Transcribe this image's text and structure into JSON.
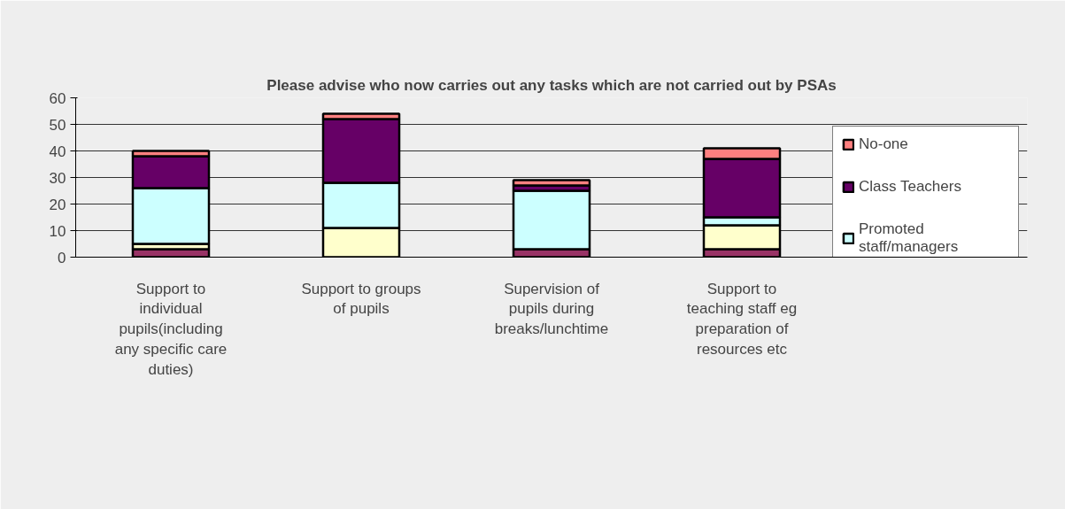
{
  "chart_data": {
    "type": "bar",
    "title": "Please advise who now carries out any tasks which are not carried out by PSAs",
    "categories": [
      "Support to individual pupils(including any specific care duties)",
      "Support to groups of pupils",
      "Supervision of pupils during breaks/lunchtime",
      "Support to teaching staff eg preparation of resources etc",
      null
    ],
    "stacked": true,
    "series": [
      {
        "color": "#993366",
        "values": [
          3,
          0,
          3,
          3,
          null
        ]
      },
      {
        "color": "#ffffcc",
        "values": [
          2,
          11,
          0,
          9,
          null
        ]
      },
      {
        "name": "Promoted staff/managers",
        "color": "#ccffff",
        "values": [
          21,
          17,
          22,
          3,
          null
        ]
      },
      {
        "name": "Class Teachers",
        "color": "#660066",
        "values": [
          12,
          24,
          2,
          22,
          null
        ]
      },
      {
        "name": "No-one",
        "color": "#ff8080",
        "values": [
          2,
          2,
          2,
          4,
          null
        ]
      }
    ],
    "ylim": [
      0,
      60
    ],
    "yticks": [
      0,
      10,
      20,
      30,
      40,
      50,
      60
    ],
    "grid": "y",
    "legend": "right"
  }
}
